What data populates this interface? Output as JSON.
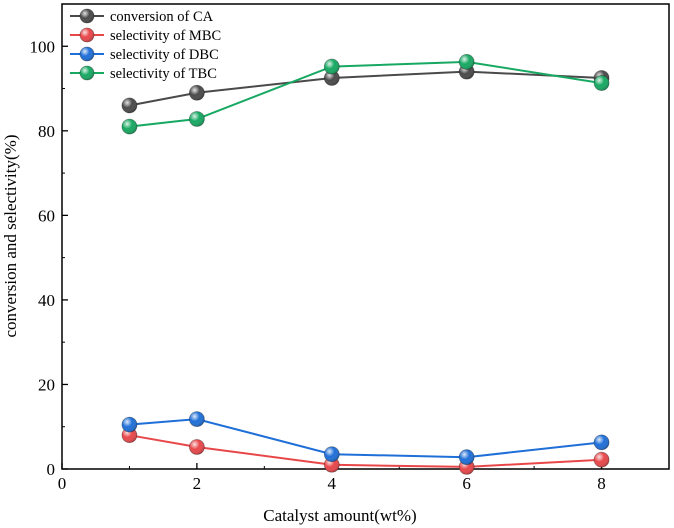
{
  "chart_data": {
    "type": "line",
    "title": "",
    "xlabel": "Catalyst amount(wt%)",
    "ylabel": "conversion and selectivity(%)",
    "xlim": [
      0,
      9
    ],
    "ylim": [
      0,
      110
    ],
    "xticks": [
      0,
      2,
      4,
      6,
      8
    ],
    "yticks": [
      0,
      20,
      40,
      60,
      80,
      100
    ],
    "x": [
      1,
      2,
      4,
      6,
      8
    ],
    "legend_position": "top-left",
    "grid": false,
    "series": [
      {
        "name": "conversion of CA",
        "color": "#4a4a4a",
        "values": [
          86.0,
          89.0,
          92.5,
          94.0,
          92.5
        ]
      },
      {
        "name": "selectivity of MBC",
        "color": "#e8474a",
        "values": [
          8.0,
          5.2,
          1.0,
          0.5,
          2.2
        ]
      },
      {
        "name": "selectivity of DBC",
        "color": "#1f6fd8",
        "values": [
          10.5,
          11.8,
          3.5,
          2.8,
          6.3
        ]
      },
      {
        "name": "selectivity of TBC",
        "color": "#17a862",
        "values": [
          81.0,
          82.8,
          95.2,
          96.3,
          91.3
        ]
      }
    ]
  }
}
